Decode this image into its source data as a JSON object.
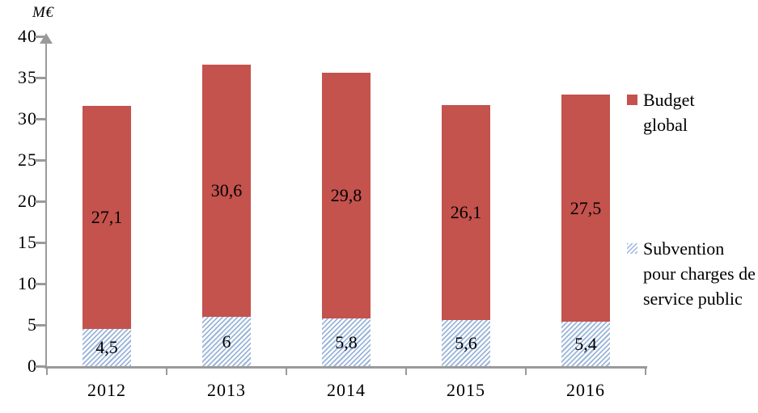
{
  "chart_data": {
    "type": "bar",
    "stacked": true,
    "categories": [
      "2012",
      "2013",
      "2014",
      "2015",
      "2016"
    ],
    "series": [
      {
        "key": "subvention",
        "name": "Subvention pour charges de service public",
        "style": "hatch-blue",
        "values": [
          4.5,
          6,
          5.8,
          5.6,
          5.4
        ],
        "labels": [
          "4,5",
          "6",
          "5,8",
          "5,6",
          "5,4"
        ]
      },
      {
        "key": "budget",
        "name": "Budget global",
        "style": "solid-red",
        "values": [
          27.1,
          30.6,
          29.8,
          26.1,
          27.5
        ],
        "labels": [
          "27,1",
          "30,6",
          "29,8",
          "26,1",
          "27,5"
        ]
      }
    ],
    "ylabel": "M€",
    "ylim": [
      0,
      40
    ],
    "ytick_step": 5,
    "grid": false,
    "legend_position": "right",
    "legend": [
      {
        "label": "Budget global",
        "swatch": "solid-red"
      },
      {
        "label": "Subvention pour charges de service public",
        "swatch": "hatch-blue"
      }
    ],
    "colors": {
      "budget_red": "#c4524d",
      "subvention_blue": "#9ab5d9",
      "axis_gray": "#9a9a9a",
      "label_text": "#000000"
    }
  }
}
